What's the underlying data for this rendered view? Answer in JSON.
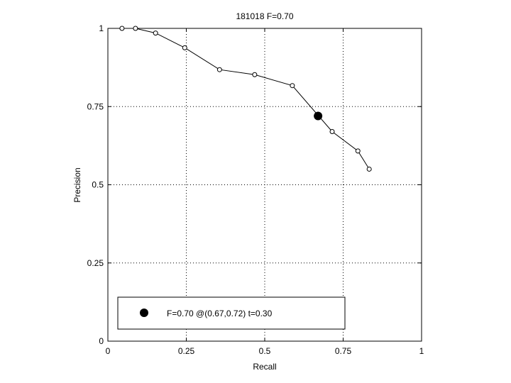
{
  "chart_data": {
    "type": "line",
    "title": "181018 F=0.70",
    "xlabel": "Recall",
    "ylabel": "Precision",
    "xlim": [
      0,
      1
    ],
    "ylim": [
      0,
      1
    ],
    "xticks": [
      0,
      0.25,
      0.5,
      0.75,
      1
    ],
    "yticks": [
      0,
      0.25,
      0.5,
      0.75,
      1
    ],
    "xtick_labels": [
      "0",
      "0.25",
      "0.5",
      "0.75",
      "1"
    ],
    "ytick_labels": [
      "0",
      "0.25",
      "0.5",
      "0.75",
      "1"
    ],
    "grid": "dotted",
    "series": [
      {
        "x": [
          0.045,
          0.088,
          0.152,
          0.245,
          0.356,
          0.468,
          0.588,
          0.715,
          0.797,
          0.833
        ],
        "y": [
          1.0,
          1.0,
          0.985,
          0.938,
          0.868,
          0.852,
          0.817,
          0.67,
          0.608,
          0.55
        ],
        "marker": "open-circle",
        "color": "#000000"
      }
    ],
    "highlight": {
      "x": 0.67,
      "y": 0.72,
      "marker": "filled-circle",
      "color": "#000000"
    },
    "legend": {
      "position": "bottom-left",
      "entries": [
        {
          "label": "F=0.70 @(0.67,0.72) t=0.30",
          "marker": "filled-circle"
        }
      ]
    }
  }
}
